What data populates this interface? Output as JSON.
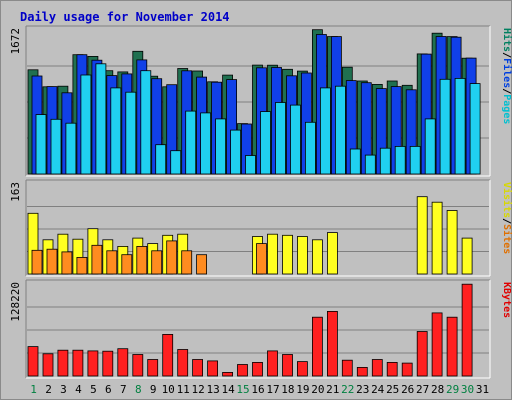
{
  "chart_data": {
    "type": "bar",
    "title": "Daily usage for November 2014",
    "categories": [
      "1",
      "2",
      "3",
      "4",
      "5",
      "6",
      "7",
      "8",
      "9",
      "10",
      "11",
      "12",
      "13",
      "14",
      "15",
      "16",
      "17",
      "18",
      "19",
      "20",
      "21",
      "22",
      "23",
      "24",
      "25",
      "26",
      "27",
      "28",
      "29",
      "30",
      "31"
    ],
    "weekend_days": [
      "1",
      "8",
      "15",
      "22",
      "29",
      "30"
    ],
    "panels": [
      {
        "id": "pages",
        "ylabel_max": "1672",
        "ymax": 1672,
        "legend": [
          {
            "name": "Pages",
            "color": "#00c0d0"
          },
          {
            "name": "Files",
            "color": "#0040e0"
          },
          {
            "name": "Hits",
            "color": "#008060"
          }
        ],
        "series": [
          {
            "name": "Hits",
            "color": "#207050",
            "values": [
              1210,
              1012,
              1020,
              1385,
              1365,
              1200,
              1185,
              1425,
              1135,
              1012,
              1225,
              1196,
              1071,
              1148,
              585,
              1265,
              1263,
              1216,
              1195,
              1675,
              1595,
              1240,
              1080,
              1040,
              1080,
              1030,
              1395,
              1635,
              1595,
              1345,
              0
            ]
          },
          {
            "name": "Files",
            "color": "#1040e8",
            "values": [
              1138,
              1015,
              943,
              1385,
              1321,
              1142,
              1162,
              1325,
              1107,
              1037,
              1198,
              1125,
              1066,
              1096,
              580,
              1233,
              1237,
              1140,
              1173,
              1620,
              1595,
              1085,
              1060,
              992,
              1015,
              978,
              1392,
              1596,
              1588,
              1346,
              0
            ]
          },
          {
            "name": "Pages",
            "color": "#20d0f0",
            "values": [
              690,
              635,
              590,
              1150,
              1280,
              1000,
              950,
              1200,
              340,
              270,
              730,
              710,
              640,
              510,
              215,
              725,
              830,
              800,
              600,
              1000,
              1020,
              290,
              220,
              300,
              320,
              320,
              640,
              1100,
              1110,
              1050,
              0
            ]
          }
        ]
      },
      {
        "id": "visits",
        "ylabel_max": "163",
        "ymax": 163,
        "legend": [
          {
            "name": "Sites",
            "color": "#e07000"
          },
          {
            "name": "Visits",
            "color": "#d8d800"
          }
        ],
        "series": [
          {
            "name": "Visits",
            "color": "#ffff20",
            "values": [
              110,
              62,
              72,
              63,
              82,
              62,
              50,
              65,
              55,
              70,
              72,
              0,
              0,
              0,
              0,
              68,
              72,
              70,
              68,
              62,
              75,
              0,
              0,
              0,
              0,
              0,
              140,
              130,
              115,
              65,
              0
            ]
          },
          {
            "name": "Sites",
            "color": "#ff8c20",
            "values": [
              43,
              45,
              40,
              30,
              52,
              42,
              35,
              50,
              42,
              60,
              42,
              35,
              0,
              0,
              0,
              55,
              0,
              0,
              0,
              0,
              0,
              0,
              0,
              0,
              0,
              0,
              0,
              0,
              0,
              0,
              0
            ]
          }
        ]
      },
      {
        "id": "kbytes",
        "ylabel_max": "128220",
        "ymax": 128220,
        "legend": [
          {
            "name": "KBytes",
            "color": "#e00000"
          }
        ],
        "series": [
          {
            "name": "KBytes",
            "color": "#ff2020",
            "values": [
              41000,
              31000,
              36000,
              36000,
              35000,
              34500,
              38000,
              30000,
              23000,
              58000,
              37000,
              23000,
              21000,
              5000,
              16000,
              19000,
              35000,
              30000,
              20000,
              82000,
              90000,
              22000,
              12000,
              23000,
              19000,
              18000,
              62000,
              88000,
              82000,
              128000,
              0
            ]
          }
        ]
      }
    ]
  }
}
